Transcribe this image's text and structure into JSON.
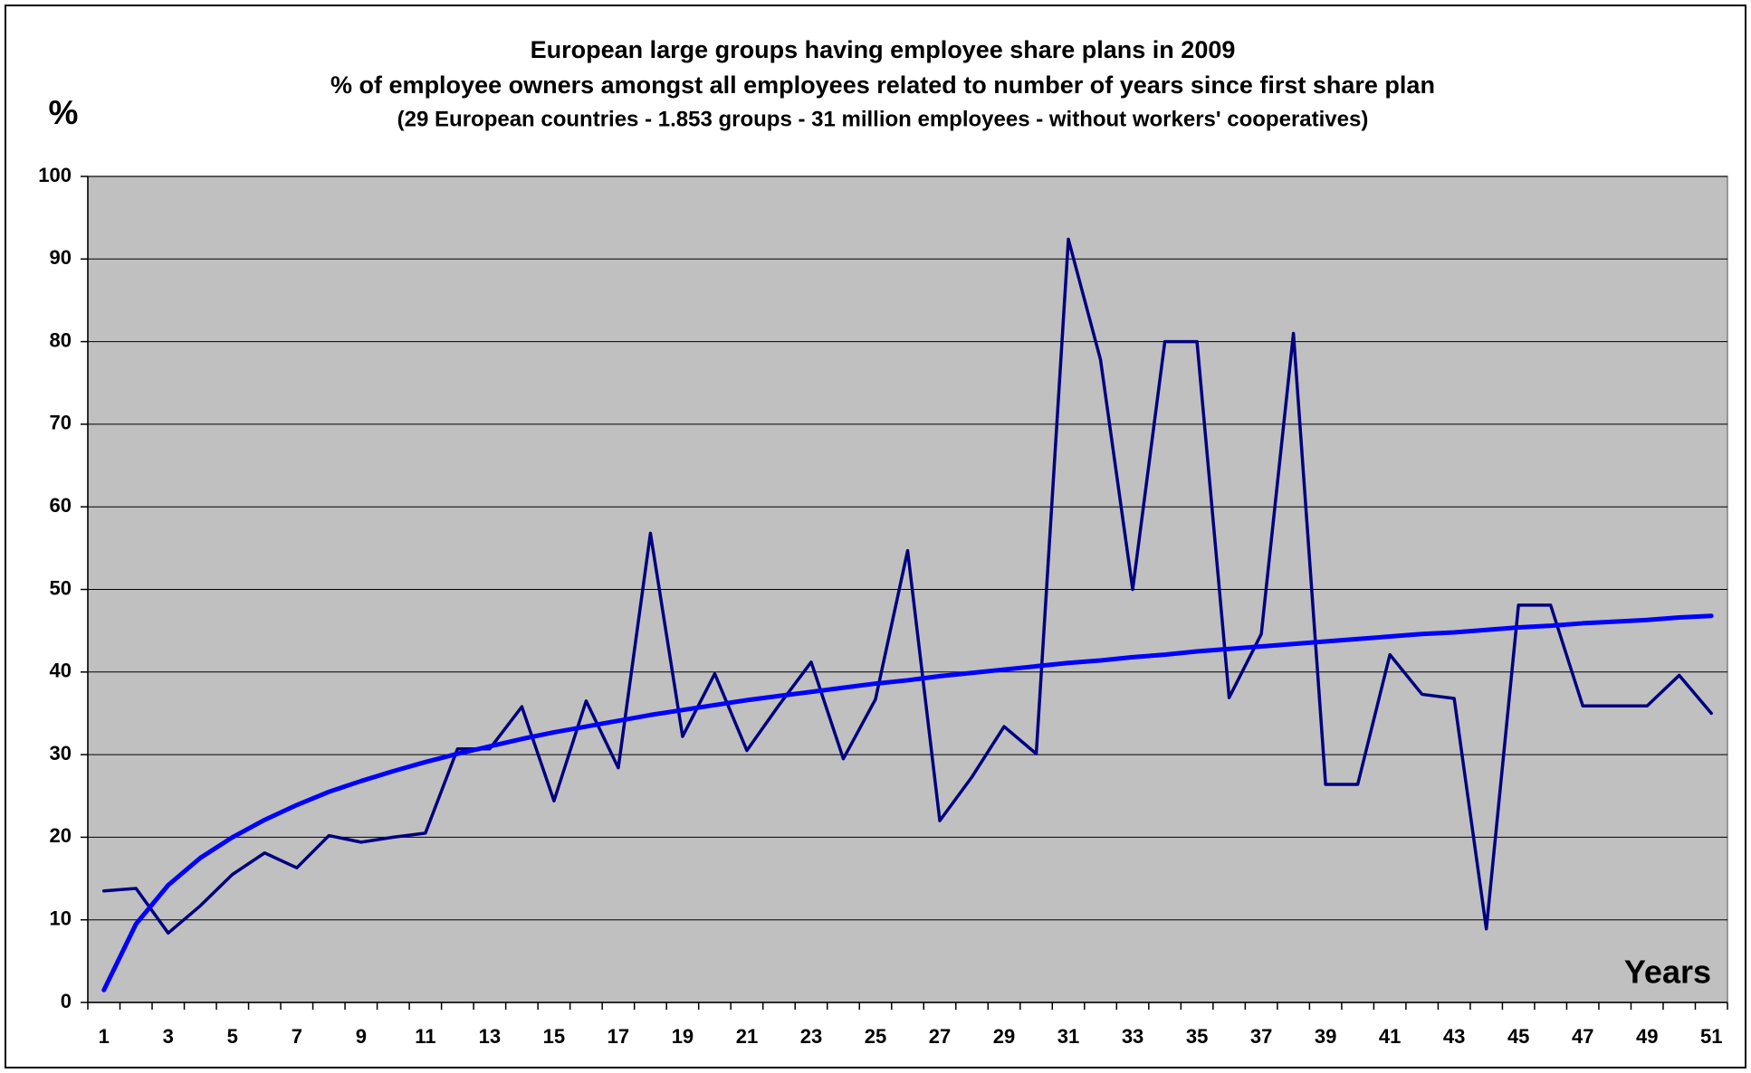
{
  "chart_data": {
    "type": "line",
    "title": "European large groups having employee share plans in 2009",
    "subtitle": [
      "% of employee owners amongst all employees  related to  number of years since first share plan",
      "(29 European countries - 1.853 groups - 31 million employees - without workers' cooperatives)"
    ],
    "y_label": "%",
    "x_label": "Years",
    "categories": [
      1,
      null,
      3,
      null,
      5,
      null,
      7,
      null,
      9,
      null,
      11,
      null,
      13,
      null,
      15,
      null,
      17,
      null,
      19,
      null,
      21,
      null,
      23,
      null,
      25,
      null,
      27,
      null,
      29,
      null,
      31,
      null,
      33,
      null,
      35,
      null,
      37,
      null,
      39,
      null,
      41,
      null,
      43,
      null,
      45,
      null,
      47,
      null,
      49,
      null,
      51
    ],
    "series": [
      {
        "color": "#000080",
        "values": [
          13.5,
          13.8,
          8.4,
          11.7,
          15.5,
          18.1,
          16.3,
          20.2,
          19.4,
          20.0,
          20.5,
          30.7,
          30.7,
          35.8,
          24.4,
          36.5,
          28.4,
          56.8,
          32.2,
          39.8,
          30.5,
          36.0,
          41.2,
          29.5,
          36.7,
          54.7,
          22.0,
          27.3,
          33.4,
          30.1,
          92.4,
          77.8,
          50.0,
          80.0,
          80.0,
          36.9,
          44.6,
          81.0,
          26.4,
          26.4,
          42.1,
          37.3,
          36.8,
          8.9,
          48.1,
          48.1,
          35.9,
          35.9,
          35.9,
          39.6,
          35.0
        ]
      },
      {
        "color": "#0000ff",
        "values": [
          1.5,
          9.5,
          14.2,
          17.5,
          20.0,
          22.1,
          23.9,
          25.5,
          26.8,
          28.0,
          29.1,
          30.1,
          31.0,
          31.9,
          32.7,
          33.4,
          34.1,
          34.8,
          35.4,
          36.0,
          36.6,
          37.1,
          37.6,
          38.1,
          38.6,
          39.0,
          39.5,
          39.9,
          40.3,
          40.7,
          41.1,
          41.4,
          41.8,
          42.1,
          42.5,
          42.8,
          43.1,
          43.4,
          43.7,
          44.0,
          44.3,
          44.6,
          44.8,
          45.1,
          45.4,
          45.6,
          45.9,
          46.1,
          46.3,
          46.6,
          46.8
        ]
      }
    ],
    "ylim": [
      0,
      100
    ],
    "yticks": [
      0,
      10,
      20,
      30,
      40,
      50,
      60,
      70,
      80,
      90,
      100
    ],
    "grid": true,
    "background": "#c0c0c0"
  }
}
